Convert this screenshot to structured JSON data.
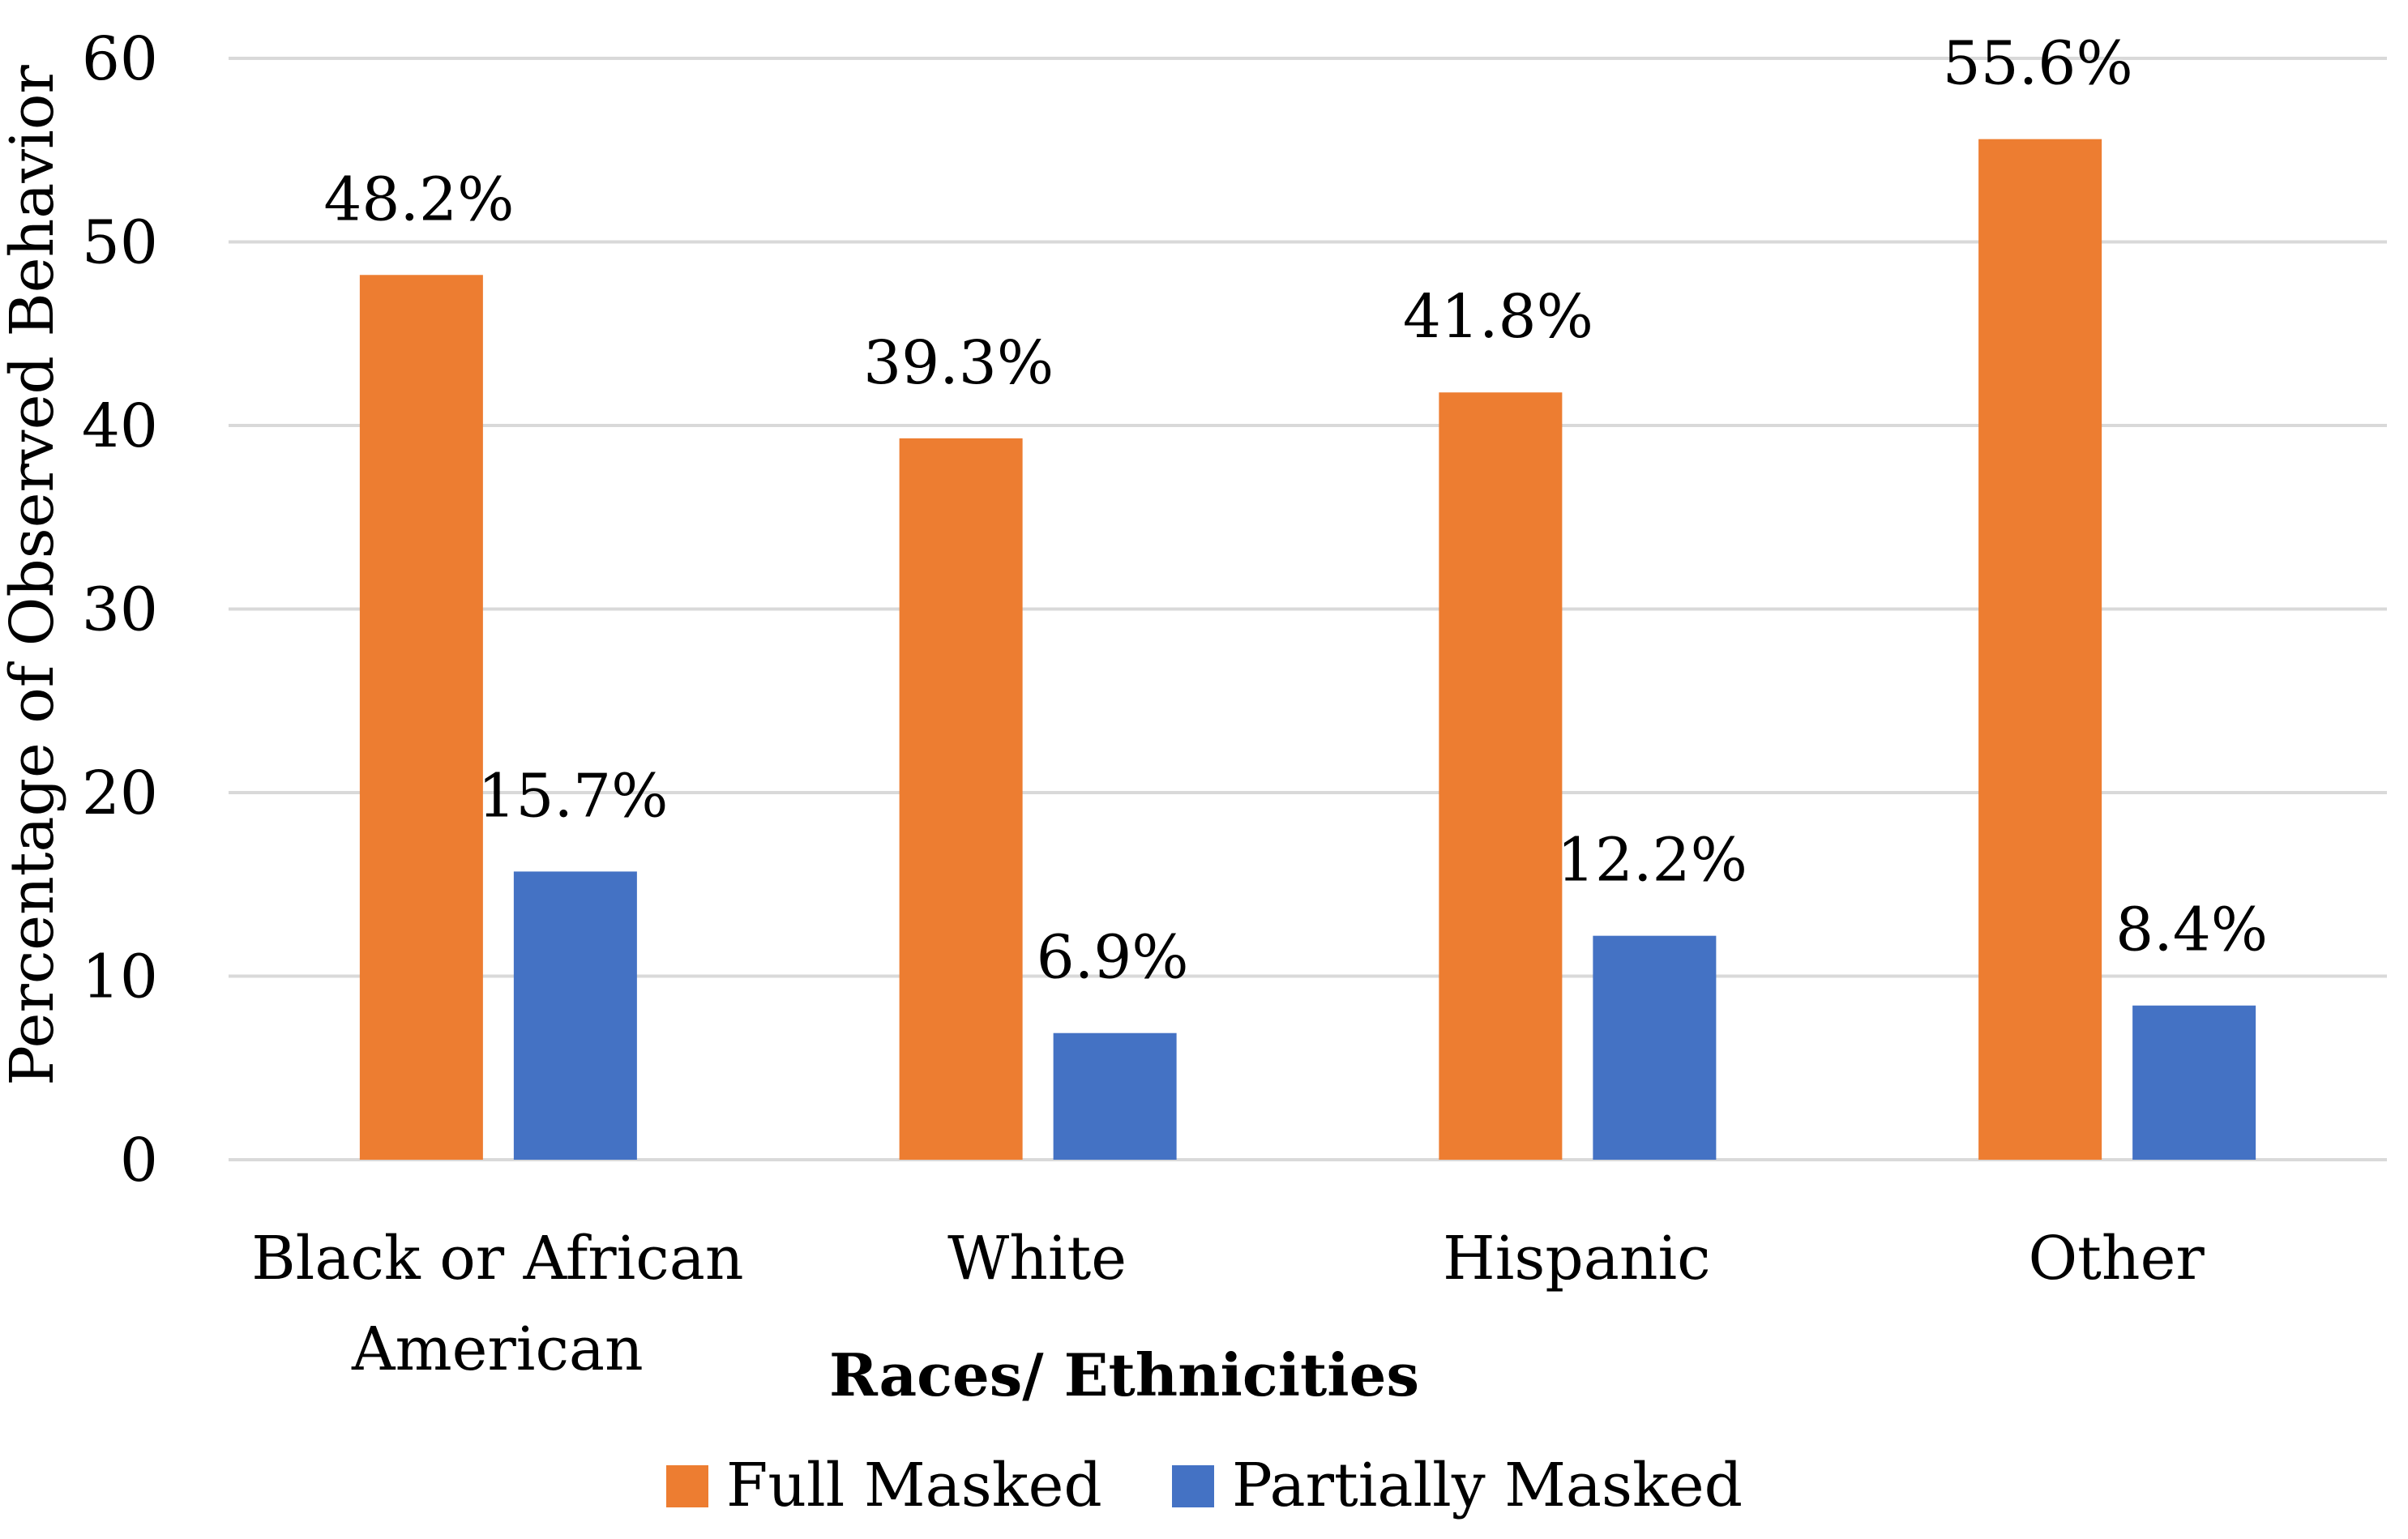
{
  "chart_data": {
    "type": "bar",
    "title": "",
    "xlabel": "Races/ Ethnicities",
    "ylabel": "Percentage of Observed Behavior",
    "ylim": [
      0,
      60
    ],
    "yticks": [
      0,
      10,
      20,
      30,
      40,
      50,
      60
    ],
    "grid": true,
    "legend_position": "bottom",
    "categories": [
      [
        "Black or African",
        "American"
      ],
      [
        "White"
      ],
      [
        "Hispanic"
      ],
      [
        "Other"
      ]
    ],
    "series": [
      {
        "name": "Full Masked",
        "color": "#ED7D31",
        "values": [
          48.2,
          39.3,
          41.8,
          55.6
        ],
        "labels": [
          "48.2%",
          "39.3%",
          "41.8%",
          "55.6%"
        ]
      },
      {
        "name": "Partially Masked",
        "color": "#4472C4",
        "values": [
          15.7,
          6.9,
          12.2,
          8.4
        ],
        "labels": [
          "15.7%",
          "6.9%",
          "12.2%",
          "8.4%"
        ]
      }
    ]
  },
  "colors": {
    "gridline": "#D9D9D9",
    "text": "#000000"
  }
}
